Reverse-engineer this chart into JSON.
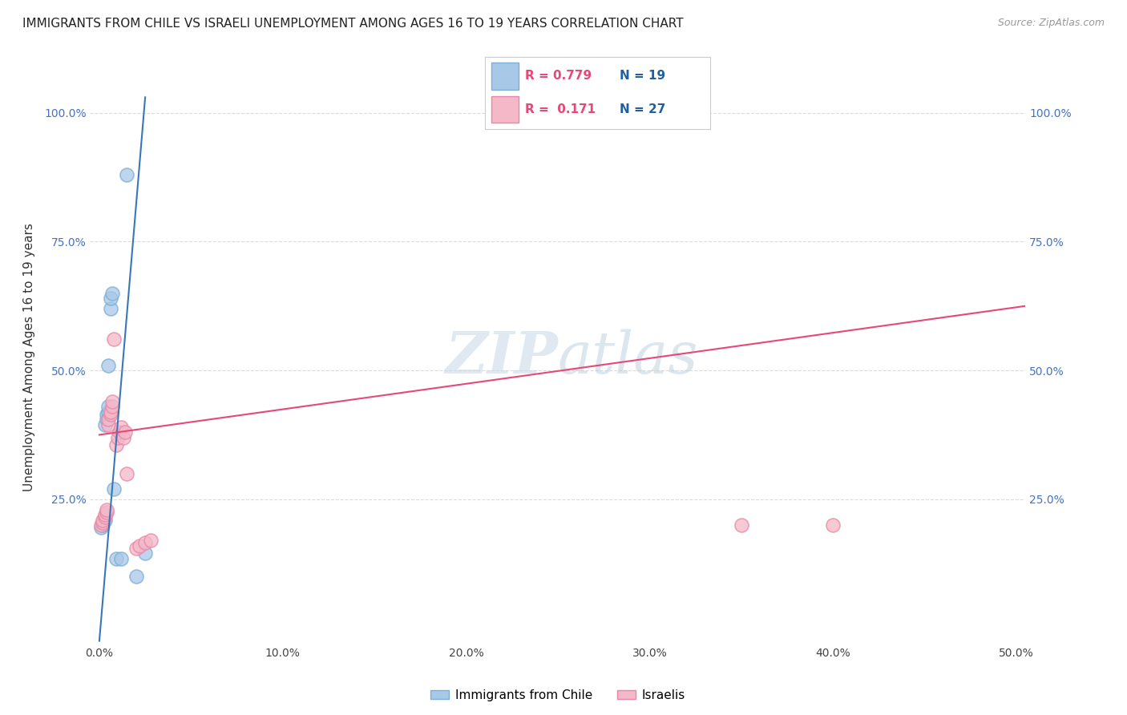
{
  "title": "IMMIGRANTS FROM CHILE VS ISRAELI UNEMPLOYMENT AMONG AGES 16 TO 19 YEARS CORRELATION CHART",
  "source": "Source: ZipAtlas.com",
  "ylabel": "Unemployment Among Ages 16 to 19 years",
  "xlim": [
    -0.005,
    0.505
  ],
  "ylim": [
    -0.03,
    1.08
  ],
  "xticks": [
    0.0,
    0.1,
    0.2,
    0.3,
    0.4,
    0.5
  ],
  "yticks": [
    0.25,
    0.5,
    0.75,
    1.0
  ],
  "xtick_labels": [
    "0.0%",
    "10.0%",
    "20.0%",
    "30.0%",
    "40.0%",
    "50.0%"
  ],
  "ytick_labels": [
    "25.0%",
    "50.0%",
    "75.0%",
    "100.0%"
  ],
  "blue_color": "#a8c8e8",
  "pink_color": "#f4b8c8",
  "blue_edge": "#7bafd4",
  "pink_edge": "#e888a8",
  "blue_line_color": "#3878b8",
  "pink_line_color": "#e84878",
  "legend_blue_r": "0.779",
  "legend_blue_n": "19",
  "legend_pink_r": "0.171",
  "legend_pink_n": "27",
  "blue_scatter_x": [
    0.001,
    0.002,
    0.002,
    0.003,
    0.003,
    0.004,
    0.004,
    0.005,
    0.005,
    0.005,
    0.006,
    0.006,
    0.007,
    0.008,
    0.009,
    0.012,
    0.015,
    0.02,
    0.025
  ],
  "blue_scatter_y": [
    0.195,
    0.2,
    0.205,
    0.21,
    0.395,
    0.405,
    0.415,
    0.42,
    0.43,
    0.51,
    0.62,
    0.64,
    0.65,
    0.27,
    0.135,
    0.135,
    0.88,
    0.1,
    0.145
  ],
  "pink_scatter_x": [
    0.001,
    0.002,
    0.002,
    0.003,
    0.003,
    0.004,
    0.004,
    0.005,
    0.005,
    0.006,
    0.006,
    0.007,
    0.007,
    0.008,
    0.009,
    0.01,
    0.011,
    0.012,
    0.013,
    0.014,
    0.015,
    0.02,
    0.022,
    0.025,
    0.028,
    0.35,
    0.4
  ],
  "pink_scatter_y": [
    0.2,
    0.205,
    0.21,
    0.215,
    0.22,
    0.225,
    0.23,
    0.395,
    0.405,
    0.415,
    0.42,
    0.43,
    0.44,
    0.56,
    0.355,
    0.37,
    0.38,
    0.39,
    0.37,
    0.38,
    0.3,
    0.155,
    0.16,
    0.165,
    0.17,
    0.2,
    0.2
  ],
  "blue_line_x0": 0.0,
  "blue_line_y0": -0.025,
  "blue_line_x1": 0.025,
  "blue_line_y1": 1.03,
  "pink_line_x0": 0.0,
  "pink_line_y0": 0.375,
  "pink_line_x1": 0.505,
  "pink_line_y1": 0.625,
  "background_color": "#ffffff",
  "grid_color": "#d8d8d8",
  "watermark_color": "#c8d8e8"
}
